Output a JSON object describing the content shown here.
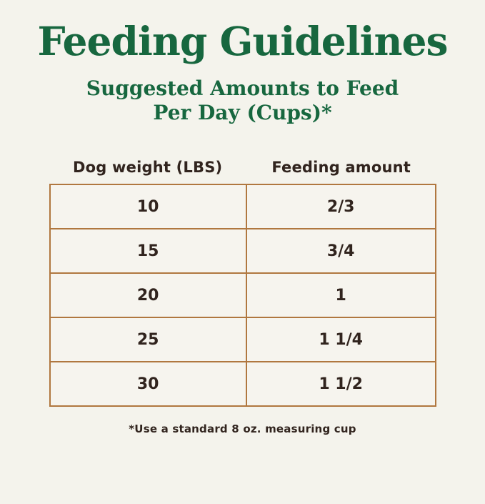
{
  "chart_data": {
    "type": "table",
    "title": "Feeding Guidelines",
    "subtitle": "Suggested Amounts to Feed Per Day (Cups)*",
    "columns": [
      "Dog weight (LBS)",
      "Feeding amount"
    ],
    "rows": [
      [
        "10",
        "2/3"
      ],
      [
        "15",
        "3/4"
      ],
      [
        "20",
        "1"
      ],
      [
        "25",
        "1 1/4"
      ],
      [
        "30",
        "1 1/2"
      ]
    ],
    "footnote": "*Use a standard 8 oz. measuring cup",
    "layout_hints": {
      "grid": "on",
      "columns_count": 2,
      "rows_count": 5
    }
  },
  "display": {
    "subtitle_line1": "Suggested Amounts to Feed",
    "subtitle_line2": "Per Day (Cups)*"
  },
  "colors": {
    "background": "#f4f3ec",
    "title_green": "#17673f",
    "table_border": "#b0773f",
    "text_dark": "#31241e"
  }
}
